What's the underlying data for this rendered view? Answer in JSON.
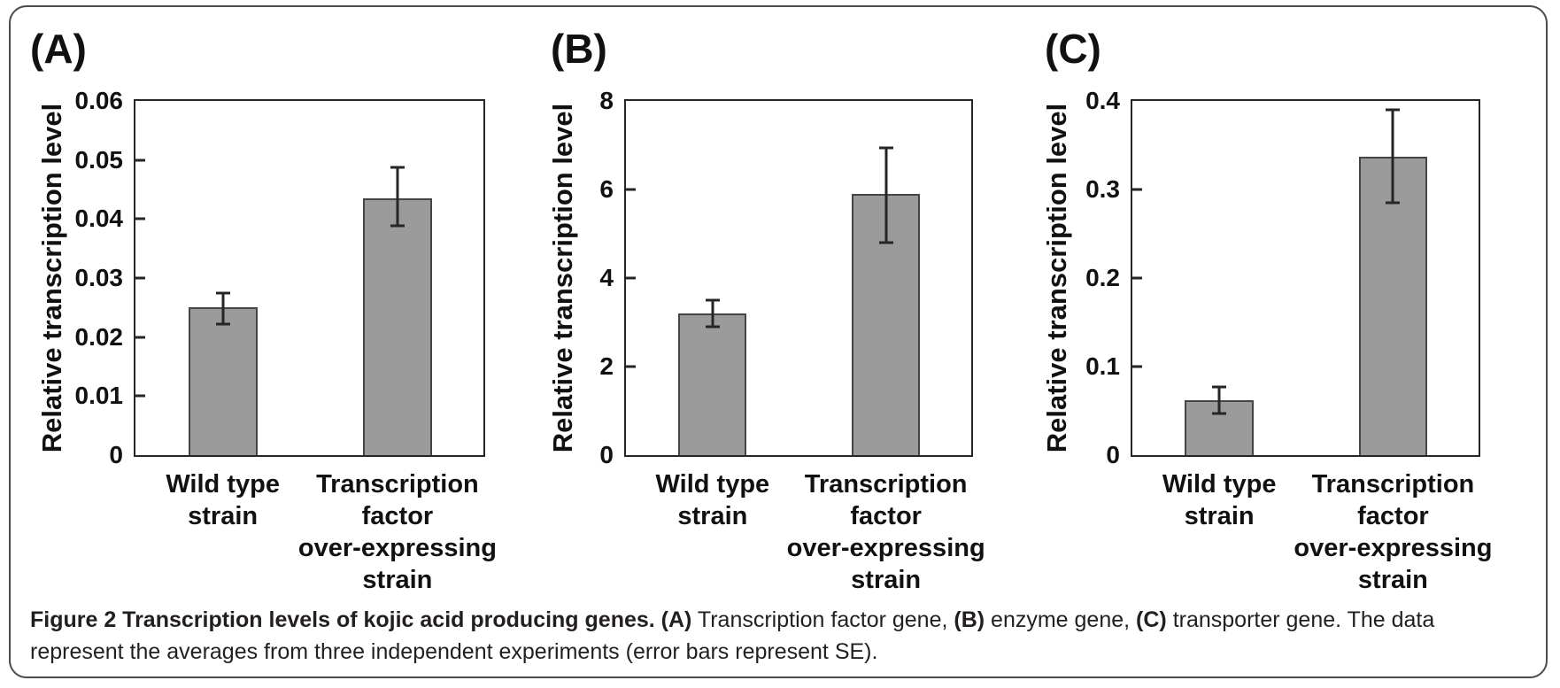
{
  "colors": {
    "bar_fill": "#9b9b9b",
    "bar_border": "#454545",
    "axis": "#262626",
    "text": "#111111",
    "caption_text": "#231f20",
    "frame_border": "#4b4b4b",
    "background": "#ffffff"
  },
  "chart_data": [
    {
      "type": "bar",
      "panel_label": "(A)",
      "ylabel": "Relative transcription level",
      "ylim": [
        0,
        0.06
      ],
      "yticks": [
        0,
        0.01,
        0.02,
        0.03,
        0.04,
        0.05,
        0.06
      ],
      "ytick_labels": [
        "0",
        "0.01",
        "0.02",
        "0.03",
        "0.04",
        "0.05",
        "0.06"
      ],
      "categories": [
        "Wild type strain",
        "Transcription factor over-expressing strain"
      ],
      "category_lines": [
        [
          "Wild type",
          "strain"
        ],
        [
          "Transcription",
          "factor",
          "over-expressing",
          "strain"
        ]
      ],
      "values": [
        0.025,
        0.0435
      ],
      "error_low": [
        0.0222,
        0.0388
      ],
      "error_high": [
        0.0274,
        0.0488
      ],
      "grid": false,
      "legend": "none"
    },
    {
      "type": "bar",
      "panel_label": "(B)",
      "ylabel": "Relative transcription level",
      "ylim": [
        0,
        8
      ],
      "yticks": [
        0,
        2,
        4,
        6,
        8
      ],
      "ytick_labels": [
        "0",
        "2",
        "4",
        "6",
        "8"
      ],
      "categories": [
        "Wild type strain",
        "Transcription factor over-expressing strain"
      ],
      "category_lines": [
        [
          "Wild type",
          "strain"
        ],
        [
          "Transcription",
          "factor",
          "over-expressing",
          "strain"
        ]
      ],
      "values": [
        3.2,
        5.9
      ],
      "error_low": [
        2.9,
        4.8
      ],
      "error_high": [
        3.5,
        6.95
      ],
      "grid": false,
      "legend": "none"
    },
    {
      "type": "bar",
      "panel_label": "(C)",
      "ylabel": "Relative transcription level",
      "ylim": [
        0,
        0.4
      ],
      "yticks": [
        0,
        0.1,
        0.2,
        0.3,
        0.4
      ],
      "ytick_labels": [
        "0",
        "0.1",
        "0.2",
        "0.3",
        "0.4"
      ],
      "categories": [
        "Wild type strain",
        "Transcription factor over-expressing strain"
      ],
      "category_lines": [
        [
          "Wild type",
          "strain"
        ],
        [
          "Transcription",
          "factor",
          "over-expressing",
          "strain"
        ]
      ],
      "values": [
        0.062,
        0.337
      ],
      "error_low": [
        0.047,
        0.285
      ],
      "error_high": [
        0.077,
        0.39
      ],
      "grid": false,
      "legend": "none"
    }
  ],
  "caption": {
    "lines": [
      {
        "segments": [
          {
            "text": "Figure 2 Transcription levels of kojic acid producing genes. ",
            "bold": true
          },
          {
            "text": "(A)",
            "bold": true
          },
          {
            "text": " Transcription factor gene, ",
            "bold": false
          },
          {
            "text": "(B)",
            "bold": true
          },
          {
            "text": " enzyme gene, ",
            "bold": false
          },
          {
            "text": "(C)",
            "bold": true
          },
          {
            "text": " transporter gene. The data",
            "bold": false
          }
        ]
      },
      {
        "segments": [
          {
            "text": "represent the averages from three independent experiments (error bars represent SE).",
            "bold": false
          }
        ]
      }
    ]
  }
}
